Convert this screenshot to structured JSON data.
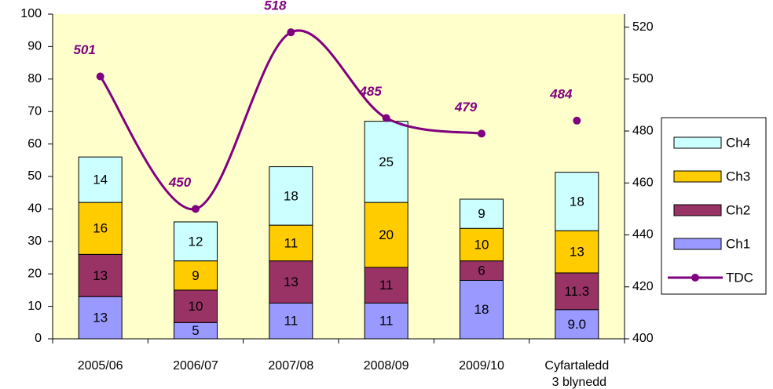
{
  "chart_data": {
    "type": "bar",
    "stacked": true,
    "categories": [
      "2005/06",
      "2006/07",
      "2007/08",
      "2008/09",
      "2009/10",
      "Cyfartaledd 3 blynedd"
    ],
    "series": [
      {
        "name": "Ch1",
        "color": "#9999ff",
        "values": [
          13,
          5,
          11,
          11,
          18,
          9.0
        ],
        "value_labels": [
          "13",
          "5",
          "11",
          "11",
          "18",
          "9.0"
        ]
      },
      {
        "name": "Ch2",
        "color": "#993366",
        "values": [
          13,
          10,
          13,
          11,
          6,
          11.3
        ]
      },
      {
        "name": "Ch3",
        "color": "#ffcc00",
        "values": [
          16,
          9,
          11,
          20,
          10,
          13
        ]
      },
      {
        "name": "Ch4",
        "color": "#ccffff",
        "values": [
          14,
          12,
          18,
          25,
          9,
          18
        ]
      },
      {
        "name": "TDC",
        "color": "#800080",
        "type": "line",
        "axis": "y2",
        "values": [
          501,
          450,
          518,
          485,
          479,
          484
        ]
      }
    ],
    "ylim": [
      0,
      100
    ],
    "yticks": [
      0,
      10,
      20,
      30,
      40,
      50,
      60,
      70,
      80,
      90,
      100
    ],
    "y2lim": [
      400,
      525
    ],
    "y2ticks": [
      400,
      420,
      440,
      460,
      480,
      500,
      520
    ],
    "legend": "right"
  }
}
